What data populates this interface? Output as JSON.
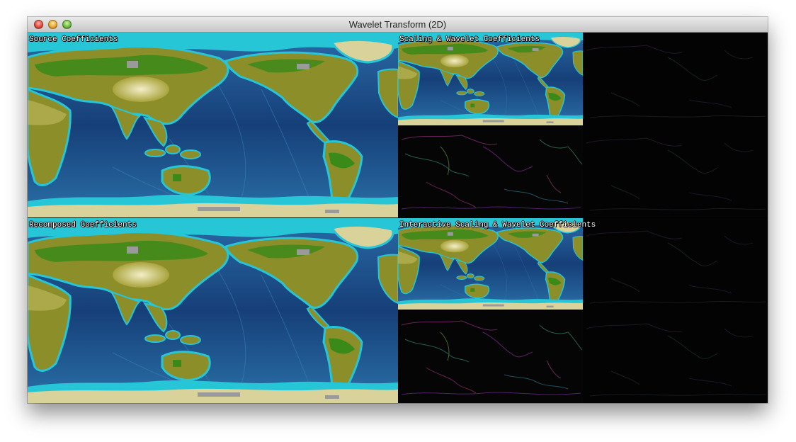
{
  "window": {
    "title": "Wavelet Transform (2D)"
  },
  "panels": {
    "source": {
      "label": "Source Coefficients"
    },
    "scaling_wavelet": {
      "label": "Scaling & Wavelet Coefficients"
    },
    "recomposed": {
      "label": "Recomposed Coefficients"
    },
    "interactive": {
      "label": "Interactive Scaling & Wavelet Coefficients"
    }
  },
  "colors": {
    "ocean": "#1d4f86",
    "ocean_deep": "#0f3566",
    "shelf": "#26c6d6",
    "land": "#8c8e2a",
    "land_green": "#3a8a1a",
    "ice": "#d9d29a",
    "coeff_bg": "#050505"
  }
}
